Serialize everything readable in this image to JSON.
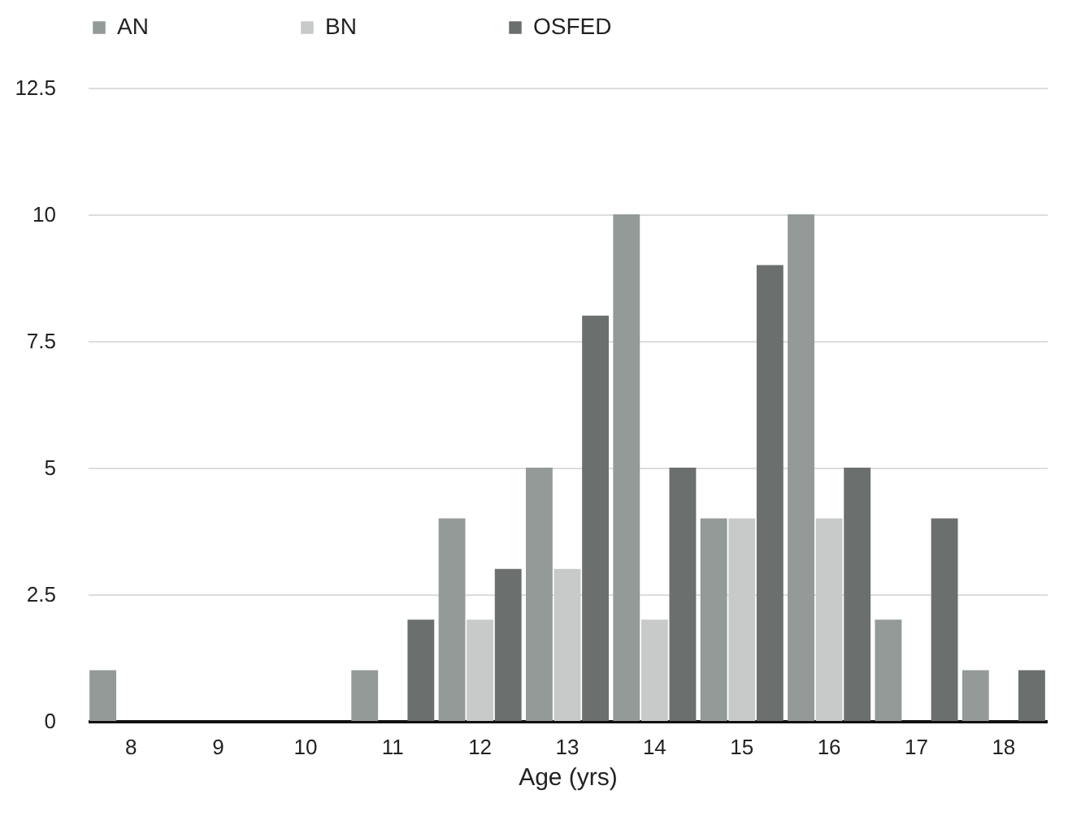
{
  "chart_data": {
    "type": "bar",
    "xlabel": "Age (yrs)",
    "categories": [
      "8",
      "9",
      "10",
      "11",
      "12",
      "13",
      "14",
      "15",
      "16",
      "17",
      "18"
    ],
    "series": [
      {
        "name": "AN",
        "color": "#939a97",
        "values": [
          1,
          0,
          0,
          1,
          4,
          5,
          10,
          4,
          10,
          2,
          1
        ]
      },
      {
        "name": "BN",
        "color": "#c8c9c9",
        "values": [
          0,
          0,
          0,
          0,
          2,
          3,
          2,
          4,
          4,
          0,
          0
        ]
      },
      {
        "name": "OSFED",
        "color": "#6b6f6e",
        "values": [
          0,
          0,
          0,
          2,
          3,
          8,
          5,
          9,
          5,
          4,
          1
        ]
      }
    ],
    "ylim": [
      0,
      12.5
    ],
    "yticks": [
      0,
      2.5,
      5,
      7.5,
      10,
      12.5
    ],
    "grid": "y",
    "legend": "top"
  }
}
